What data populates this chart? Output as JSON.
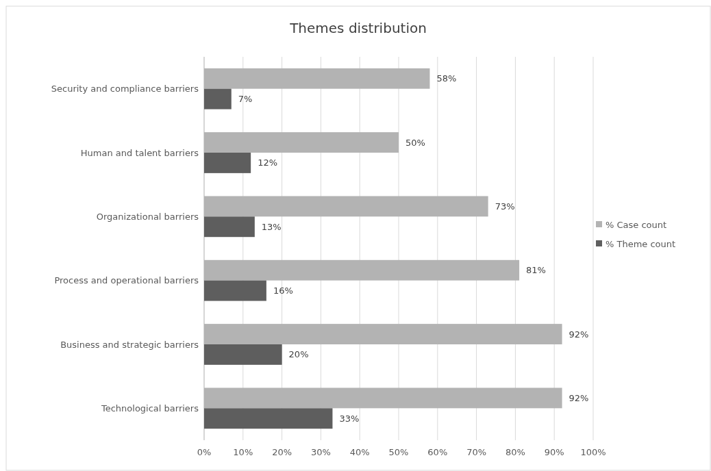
{
  "chart_data": {
    "type": "bar",
    "orientation": "horizontal",
    "title": "Themes distribution",
    "categories": [
      "Security and compliance barriers",
      "Human and talent barriers",
      "Organizational barriers",
      "Process and operational barriers",
      "Business and strategic barriers",
      "Technological barriers"
    ],
    "series": [
      {
        "name": "% Case count",
        "color": "#b3b3b3",
        "values": [
          58,
          50,
          73,
          81,
          92,
          92
        ],
        "value_labels": [
          "58%",
          "50%",
          "73%",
          "81%",
          "92%",
          "92%"
        ]
      },
      {
        "name": "% Theme count",
        "color": "#5e5e5e",
        "values": [
          7,
          12,
          13,
          16,
          20,
          33
        ],
        "value_labels": [
          "7%",
          "12%",
          "13%",
          "16%",
          "20%",
          "33%"
        ]
      }
    ],
    "xlim": [
      0,
      100
    ],
    "xticks": [
      {
        "value": 0,
        "label": "0%"
      },
      {
        "value": 10,
        "label": "10%"
      },
      {
        "value": 20,
        "label": "20%"
      },
      {
        "value": 30,
        "label": "30%"
      },
      {
        "value": 40,
        "label": "40%"
      },
      {
        "value": 50,
        "label": "50%"
      },
      {
        "value": 60,
        "label": "60%"
      },
      {
        "value": 70,
        "label": "70%"
      },
      {
        "value": 80,
        "label": "80%"
      },
      {
        "value": 90,
        "label": "90%"
      },
      {
        "value": 100,
        "label": "100%"
      }
    ],
    "grid": "x",
    "legend": "right"
  }
}
